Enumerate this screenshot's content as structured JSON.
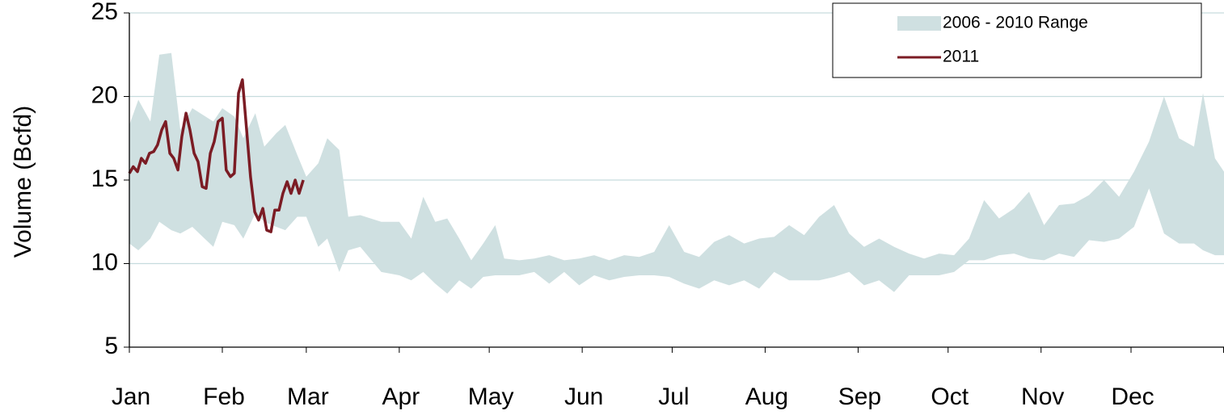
{
  "chart_data": {
    "type": "line",
    "y_label": "Volume (Bcfd)",
    "xlim": [
      0,
      365
    ],
    "xticks": [
      {
        "value": 0,
        "label": "Jan"
      },
      {
        "value": 31,
        "label": "Feb"
      },
      {
        "value": 59,
        "label": "Mar"
      },
      {
        "value": 90,
        "label": "Apr"
      },
      {
        "value": 120,
        "label": "May"
      },
      {
        "value": 151,
        "label": "Jun"
      },
      {
        "value": 181,
        "label": "Jul"
      },
      {
        "value": 212,
        "label": "Aug"
      },
      {
        "value": 243,
        "label": "Sep"
      },
      {
        "value": 273,
        "label": "Oct"
      },
      {
        "value": 304,
        "label": "Nov"
      },
      {
        "value": 334,
        "label": "Dec"
      }
    ],
    "ylim": [
      5,
      25
    ],
    "yticks": [
      5,
      10,
      15,
      20,
      25
    ],
    "grid": true,
    "legend": "top-right",
    "series": [
      {
        "name": "2006 - 2010 Range",
        "type": "range",
        "color": "#cfe0e1",
        "x": [
          0,
          3,
          7,
          10,
          14,
          17,
          21,
          28,
          31,
          35,
          38,
          42,
          45,
          49,
          52,
          56,
          59,
          63,
          66,
          70,
          73,
          77,
          84,
          90,
          94,
          98,
          102,
          106,
          110,
          114,
          118,
          122,
          125,
          130,
          135,
          140,
          145,
          150,
          155,
          160,
          165,
          170,
          175,
          180,
          185,
          190,
          195,
          200,
          205,
          210,
          215,
          220,
          225,
          230,
          235,
          240,
          245,
          250,
          255,
          260,
          265,
          270,
          275,
          280,
          285,
          290,
          295,
          300,
          305,
          310,
          315,
          320,
          325,
          330,
          335,
          340,
          345,
          350,
          355,
          358,
          362,
          365
        ],
        "low": [
          11.2,
          10.8,
          11.5,
          12.5,
          12,
          11.8,
          12.2,
          11,
          12.5,
          12.3,
          11.5,
          13,
          12.5,
          12.2,
          12,
          12.8,
          12.8,
          11,
          11.5,
          9.5,
          10.8,
          11,
          9.5,
          9.3,
          9,
          9.5,
          8.8,
          8.2,
          9,
          8.5,
          9.2,
          9.3,
          9.3,
          9.3,
          9.5,
          8.8,
          9.5,
          8.7,
          9.3,
          9,
          9.2,
          9.3,
          9.3,
          9.2,
          8.8,
          8.5,
          9,
          8.7,
          9,
          8.5,
          9.5,
          9,
          9,
          9,
          9.2,
          9.5,
          8.7,
          9,
          8.3,
          9.3,
          9.3,
          9.3,
          9.5,
          10.2,
          10.2,
          10.5,
          10.6,
          10.3,
          10.2,
          10.6,
          10.4,
          11.4,
          11.3,
          11.5,
          12.2,
          14.5,
          11.8,
          11.2,
          11.2,
          10.8,
          10.5,
          10.5
        ],
        "high": [
          18.3,
          19.8,
          18.5,
          22.5,
          22.6,
          18,
          19.3,
          18.5,
          19.3,
          18.8,
          17.5,
          19,
          17,
          17.8,
          18.3,
          16.5,
          15.2,
          16,
          17.5,
          16.8,
          12.8,
          12.9,
          12.5,
          12.5,
          11.5,
          14,
          12.5,
          12.7,
          11.5,
          10.2,
          11.2,
          12.3,
          10.3,
          10.2,
          10.3,
          10.5,
          10.2,
          10.3,
          10.5,
          10.2,
          10.5,
          10.4,
          10.7,
          12.3,
          10.7,
          10.4,
          11.3,
          11.7,
          11.2,
          11.5,
          11.6,
          12.3,
          11.7,
          12.8,
          13.5,
          11.8,
          11,
          11.5,
          11,
          10.6,
          10.3,
          10.6,
          10.5,
          11.5,
          13.8,
          12.7,
          13.3,
          14.3,
          12.3,
          13.5,
          13.6,
          14.1,
          15,
          14,
          15.5,
          17.3,
          20,
          17.5,
          17,
          20.2,
          16.3,
          15.5
        ]
      },
      {
        "name": "2011",
        "type": "line",
        "color": "#7b1c24",
        "x": [
          0,
          1.3,
          2.7,
          4,
          5.4,
          6.7,
          8.1,
          9.4,
          10.8,
          12.1,
          13.5,
          14.8,
          16.2,
          17.5,
          18.9,
          20.2,
          21.6,
          22.9,
          24.3,
          25.6,
          27,
          28.3,
          29.6,
          31,
          32.3,
          33.7,
          35,
          36.4,
          37.7,
          39.1,
          40.4,
          41.8,
          43.1,
          44.5,
          45.8,
          47.2,
          48.5,
          49.9,
          51.2,
          52.6,
          53.9,
          55.3,
          56.6,
          58
        ],
        "values": [
          15.4,
          15.8,
          15.5,
          16.3,
          16,
          16.6,
          16.7,
          17.1,
          18,
          18.5,
          16.6,
          16.3,
          15.6,
          17.6,
          19,
          18,
          16.6,
          16.1,
          14.6,
          14.5,
          16.6,
          17.3,
          18.5,
          18.7,
          15.6,
          15.2,
          15.4,
          20.2,
          21,
          18,
          15.2,
          13.1,
          12.6,
          13.3,
          12,
          11.9,
          13.2,
          13.2,
          14.2,
          14.9,
          14.2,
          15,
          14.2,
          15
        ]
      }
    ]
  }
}
